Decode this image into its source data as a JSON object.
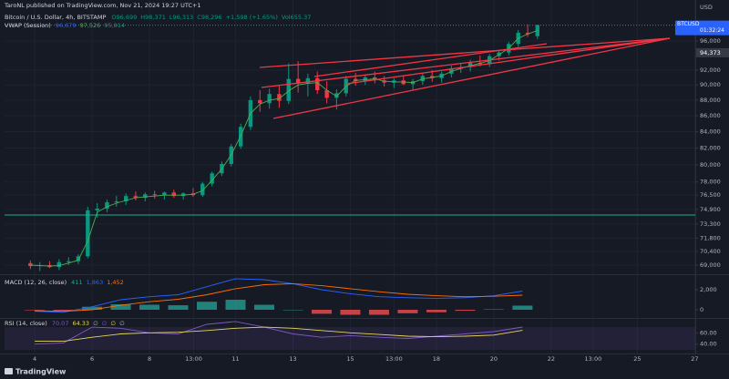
{
  "header": {
    "publisher": "TaroNL published on TradingView.com, Nov 21, 2024 19:27 UTC+1",
    "logo": "TradingView",
    "currency": "USD"
  },
  "chart_data": [
    {
      "type": "candlestick",
      "title": "Bitcoin / U.S. Dollar, 4h, BITSTAMP",
      "ohlc_legend": [
        "O96,699",
        "H98,371",
        "L96,313",
        "C98,296",
        "+1,598 (+1.65%)",
        "Vol655.37"
      ],
      "symbol": "BTCUSD",
      "countdown": "01:32:24",
      "marker": {
        "value": 94373,
        "label": "94,373"
      },
      "up_color": "#089981",
      "down_color": "#f23645",
      "x": [
        3.85,
        4.18,
        4.52,
        4.85,
        5.18,
        5.52,
        5.85,
        6.18,
        6.52,
        6.85,
        7.18,
        7.52,
        7.85,
        8.18,
        8.52,
        8.85,
        9.18,
        9.52,
        9.85,
        10.18,
        10.52,
        10.85,
        11.18,
        11.52,
        11.85,
        12.18,
        12.52,
        12.85,
        13.18,
        13.52,
        13.85,
        14.18,
        14.52,
        14.85,
        15.18,
        15.52,
        15.85,
        16.18,
        16.52,
        16.85,
        17.18,
        17.52,
        17.85,
        18.18,
        18.52,
        18.85,
        19.18,
        19.52,
        19.85,
        20.18,
        20.52,
        20.85,
        21.18,
        21.52
      ],
      "open": [
        69200,
        68900,
        69000,
        68800,
        69300,
        69400,
        69900,
        74800,
        75000,
        75700,
        75800,
        76400,
        76200,
        76600,
        76500,
        76800,
        76400,
        76700,
        76500,
        77800,
        79000,
        80100,
        82200,
        84600,
        88000,
        87600,
        88800,
        87900,
        90800,
        90200,
        90900,
        89300,
        88300,
        88900,
        90800,
        90500,
        91000,
        90600,
        90300,
        90600,
        90100,
        90500,
        91200,
        90900,
        91500,
        92200,
        92400,
        93000,
        92800,
        93900,
        94400,
        95600,
        97200,
        96699
      ],
      "high": [
        69500,
        69300,
        69400,
        69600,
        69800,
        70100,
        75200,
        75600,
        76000,
        76400,
        76700,
        76900,
        76800,
        77000,
        76900,
        77100,
        76800,
        77300,
        78000,
        79200,
        80400,
        82500,
        85000,
        88500,
        89300,
        89500,
        89900,
        92900,
        93200,
        91500,
        91800,
        90500,
        89400,
        91200,
        91600,
        91400,
        91800,
        91200,
        90900,
        91300,
        90800,
        91600,
        92000,
        91800,
        92600,
        93000,
        93400,
        94000,
        94200,
        94800,
        95900,
        97600,
        98400,
        98371
      ],
      "low": [
        68600,
        68400,
        68700,
        68500,
        69000,
        69100,
        69700,
        74000,
        74600,
        75200,
        75400,
        75900,
        75800,
        76100,
        76000,
        76200,
        76000,
        76300,
        76300,
        77500,
        78700,
        79800,
        81900,
        84200,
        86500,
        86900,
        87000,
        87500,
        89000,
        88500,
        88800,
        87600,
        86800,
        88500,
        89900,
        90000,
        90200,
        89800,
        89600,
        90000,
        89400,
        90000,
        90400,
        90300,
        91000,
        91600,
        91800,
        92500,
        92400,
        93300,
        94000,
        95200,
        96600,
        96313
      ],
      "close": [
        68900,
        69000,
        68800,
        69300,
        69400,
        69900,
        74800,
        75000,
        75700,
        75800,
        76400,
        76200,
        76600,
        76500,
        76800,
        76400,
        76700,
        76500,
        77800,
        79000,
        80100,
        82200,
        84600,
        88000,
        87600,
        88800,
        87900,
        90800,
        90200,
        90900,
        89300,
        88300,
        88900,
        90800,
        90500,
        91000,
        90600,
        90300,
        90600,
        90100,
        90500,
        91200,
        90900,
        91500,
        92200,
        92400,
        93000,
        92800,
        93900,
        94400,
        95600,
        97200,
        97000,
        98296
      ],
      "series": [
        {
          "name": "VWAP (Session)",
          "color": "#4caf50",
          "legend_values": [
            "96,679",
            "97,526",
            "95,814"
          ],
          "values": [
            69000,
            68950,
            68900,
            68950,
            69200,
            69500,
            71500,
            74600,
            75200,
            75600,
            75900,
            76200,
            76300,
            76400,
            76500,
            76500,
            76500,
            76600,
            77000,
            78200,
            79500,
            81200,
            83500,
            86300,
            87500,
            88000,
            88200,
            89200,
            90000,
            90200,
            90300,
            89300,
            88500,
            89800,
            90600,
            90700,
            90800,
            90500,
            90400,
            90400,
            90300,
            90800,
            91000,
            91200,
            91800,
            92200,
            92600,
            92900,
            93300,
            94100,
            95000,
            96400,
            97000,
            97526
          ]
        }
      ],
      "log": true,
      "grid": true,
      "xlim": [
        2.95,
        27.02
      ],
      "xticks": [
        4,
        6,
        8,
        {
          "value": 9.54,
          "label": "13:00"
        },
        11,
        13,
        15,
        {
          "value": 16.52,
          "label": "13:00"
        },
        18,
        20,
        22,
        {
          "value": 23.46,
          "label": "13:00"
        },
        25,
        27
      ],
      "ylim": [
        68170,
        99300
      ],
      "yticks": [
        {
          "value": 69000,
          "label": "69,000"
        },
        {
          "value": 70400,
          "label": "70,400"
        },
        {
          "value": 71800,
          "label": "71,800"
        },
        {
          "value": 73300,
          "label": "73,300"
        },
        {
          "value": 74900,
          "label": "74,900"
        },
        {
          "value": 76500,
          "label": "76,500"
        },
        {
          "value": 78000,
          "label": "78,000"
        },
        {
          "value": 80000,
          "label": "80,000"
        },
        {
          "value": 82000,
          "label": "82,000"
        },
        {
          "value": 84000,
          "label": "84,000"
        },
        {
          "value": 86000,
          "label": "86,000"
        },
        {
          "value": 88000,
          "label": "88,000"
        },
        {
          "value": 90000,
          "label": "90,000"
        },
        {
          "value": 92000,
          "label": "92,000"
        },
        {
          "value": 96000,
          "label": "96,000"
        }
      ]
    },
    {
      "type": "macd",
      "title": "MACD (12, 26, close)",
      "legend_values": [
        "411",
        "1,863",
        "1,452"
      ],
      "x": [
        4,
        5,
        6,
        7,
        8,
        9,
        10,
        11,
        12,
        13,
        14,
        15,
        16,
        17,
        18,
        19,
        20,
        21
      ],
      "histogram": {
        "up_color": "#26a69a",
        "down_color": "#ff5252",
        "values": [
          -50,
          -100,
          300,
          550,
          500,
          450,
          800,
          1000,
          500,
          0,
          -400,
          -500,
          -500,
          -350,
          -250,
          -100,
          50,
          411
        ]
      },
      "series": [
        {
          "color": "#2962ff",
          "values": [
            -150,
            -250,
            300,
            1000,
            1300,
            1500,
            2300,
            3100,
            3000,
            2600,
            2000,
            1600,
            1300,
            1200,
            1150,
            1200,
            1400,
            1863
          ]
        },
        {
          "color": "#ff6d00",
          "values": [
            -100,
            -150,
            0,
            450,
            800,
            1050,
            1500,
            2100,
            2500,
            2600,
            2400,
            2100,
            1800,
            1550,
            1400,
            1300,
            1350,
            1452
          ]
        }
      ],
      "xlim": [
        2.95,
        27.02
      ],
      "ylim": [
        -727,
        3364
      ],
      "yticks": [
        0,
        {
          "value": 2000,
          "label": "2,000"
        }
      ]
    },
    {
      "type": "line",
      "title": "RSI (14, close)",
      "legend_values": [
        "70.07",
        "64.33",
        "∅",
        "∅",
        "∅",
        "∅"
      ],
      "x": [
        4,
        5,
        6,
        7,
        8,
        9,
        10,
        11,
        12,
        13,
        14,
        15,
        16,
        17,
        18,
        19,
        20,
        21
      ],
      "band": [
        30,
        70
      ],
      "band_color": "#7e57c2",
      "series": [
        {
          "color": "#7e57c2",
          "values": [
            40,
            42,
            70,
            68,
            60,
            58,
            75,
            80,
            70,
            58,
            52,
            55,
            52,
            50,
            54,
            58,
            62,
            70.07
          ]
        },
        {
          "color": "#e5d65b",
          "values": [
            45,
            45,
            52,
            58,
            60,
            61,
            64,
            68,
            70,
            68,
            64,
            60,
            57,
            54,
            53,
            54,
            56,
            64.33
          ]
        }
      ],
      "xlim": [
        2.95,
        27.02
      ],
      "ylim": [
        25,
        83
      ],
      "yticks": [
        {
          "value": 60,
          "label": "60.00"
        },
        {
          "value": 40,
          "label": "40.00"
        }
      ]
    }
  ]
}
